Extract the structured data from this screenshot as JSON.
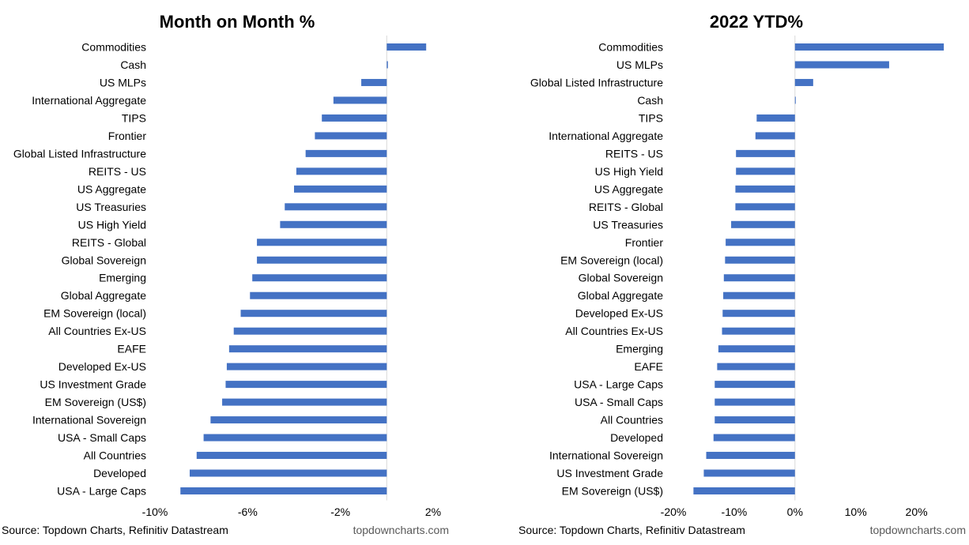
{
  "chart_data": [
    {
      "type": "bar",
      "orientation": "horizontal",
      "title": "Month on Month %",
      "categories": [
        "Commodities",
        "Cash",
        "US MLPs",
        "International Aggregate",
        "TIPS",
        "Frontier",
        "Global Listed Infrastructure",
        "REITS - US",
        "US Aggregate",
        "US Treasuries",
        "US High Yield",
        "REITS - Global",
        "Global Sovereign",
        "Emerging",
        "Global Aggregate",
        "EM Sovereign (local)",
        "All Countries Ex-US",
        "EAFE",
        "Developed Ex-US",
        "US Investment Grade",
        "EM Sovereign (US$)",
        "International Sovereign",
        "USA - Small Caps",
        "All Countries",
        "Developed",
        "USA - Large Caps"
      ],
      "values": [
        1.7,
        0.05,
        -1.1,
        -2.3,
        -2.8,
        -3.1,
        -3.5,
        -3.9,
        -4.0,
        -4.4,
        -4.6,
        -5.6,
        -5.6,
        -5.8,
        -5.9,
        -6.3,
        -6.6,
        -6.8,
        -6.9,
        -6.95,
        -7.1,
        -7.6,
        -7.9,
        -8.2,
        -8.5,
        -8.9
      ],
      "xlim": [
        -10,
        2
      ],
      "xticks": [
        -10,
        -6,
        -2,
        2
      ],
      "xtick_labels": [
        "-10%",
        "-6%",
        "-2%",
        "2%"
      ],
      "xlabel": "",
      "ylabel": "",
      "grid": false,
      "bar_color": "#4472C4",
      "source": "Source: Topdown Charts, Refinitiv Datastream",
      "watermark": "topdowncharts.com"
    },
    {
      "type": "bar",
      "orientation": "horizontal",
      "title": "2022 YTD%",
      "categories": [
        "Commodities",
        "US MLPs",
        "Global Listed Infrastructure",
        "Cash",
        "TIPS",
        "International Aggregate",
        "REITS - US",
        "US High Yield",
        "US Aggregate",
        "REITS - Global",
        "US Treasuries",
        "Frontier",
        "EM Sovereign (local)",
        "Global Sovereign",
        "Global Aggregate",
        "Developed Ex-US",
        "All Countries Ex-US",
        "Emerging",
        "EAFE",
        "USA - Large Caps",
        "USA - Small Caps",
        "All Countries",
        "Developed",
        "International Sovereign",
        "US Investment Grade",
        "EM Sovereign (US$)"
      ],
      "values": [
        24.5,
        15.5,
        3.0,
        0.1,
        -6.3,
        -6.5,
        -9.7,
        -9.7,
        -9.8,
        -9.8,
        -10.5,
        -11.4,
        -11.5,
        -11.7,
        -11.8,
        -11.9,
        -12.0,
        -12.6,
        -12.8,
        -13.2,
        -13.2,
        -13.2,
        -13.4,
        -14.6,
        -15.0,
        -16.7
      ],
      "xlim": [
        -20,
        25
      ],
      "xticks": [
        -20,
        -10,
        0,
        10,
        20
      ],
      "xtick_labels": [
        "-20%",
        "-10%",
        "0%",
        "10%",
        "20%"
      ],
      "xlabel": "",
      "ylabel": "",
      "grid": false,
      "bar_color": "#4472C4",
      "source": "Source: Topdown Charts, Refinitiv Datastream",
      "watermark": "topdowncharts.com"
    }
  ]
}
